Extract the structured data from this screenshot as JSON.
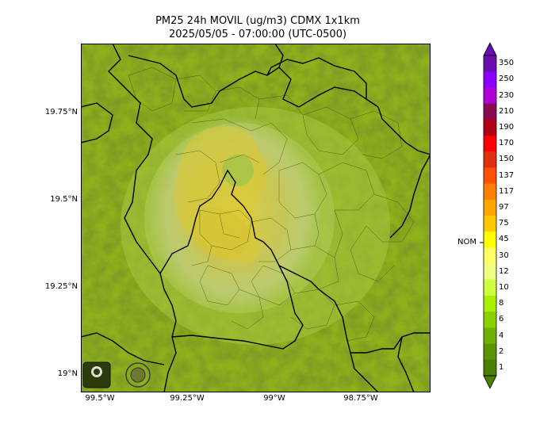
{
  "title_line1": "PM25 24h MOVIL (ug/m3) CDMX 1x1km",
  "title_line2": "2025/05/05 - 07:00:00 (UTC-0500)",
  "lat_labels": [
    "19.75°N",
    "19.5°N",
    "19.25°N",
    "19°N"
  ],
  "lon_labels": [
    "99.5°W",
    "99.25°W",
    "99°W",
    "98.75°W"
  ],
  "colorbar": {
    "labels": [
      "350",
      "250",
      "230",
      "210",
      "190",
      "170",
      "150",
      "137",
      "117",
      "97",
      "75",
      "45",
      "30",
      "12",
      "10",
      "8",
      "6",
      "4",
      "2",
      "1"
    ],
    "colors": [
      "#6a0dad",
      "#8a00ff",
      "#b000d8",
      "#8b0a4f",
      "#b00018",
      "#ff0000",
      "#e03010",
      "#ff5000",
      "#ff8000",
      "#ffa500",
      "#ffc800",
      "#ffff00",
      "#ffff66",
      "#f0ff80",
      "#d0ff40",
      "#a8f000",
      "#88d000",
      "#70b000",
      "#5a9400",
      "#4a7f00"
    ],
    "nom_label": "NOM"
  },
  "logos": {
    "left": "SEDEMA",
    "right": "CIUDAD DE MÉXICO"
  }
}
